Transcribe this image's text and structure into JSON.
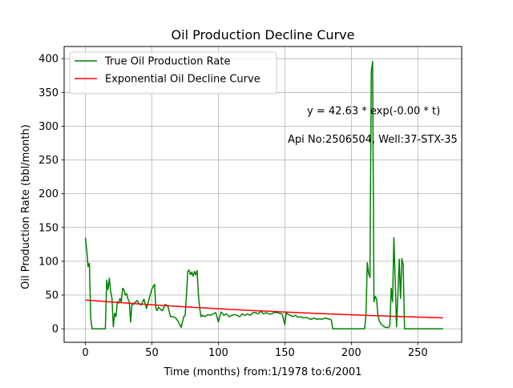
{
  "chart_data": {
    "type": "line",
    "title": "Oil Production Decline Curve",
    "xlabel": "Time (months) from:1/1978 to:6/2001",
    "ylabel": "Oil Production Rate (bbl/month)",
    "xlim": [
      -16,
      283
    ],
    "ylim": [
      -20,
      418
    ],
    "xticks": [
      0,
      50,
      100,
      150,
      200,
      250
    ],
    "yticks": [
      0,
      50,
      100,
      150,
      200,
      250,
      300,
      350,
      400
    ],
    "grid": true,
    "legend_position": "top-left",
    "annotations": [
      {
        "text": "y = 42.63 * exp(-0.00 * t)",
        "x": 192,
        "y": 323
      },
      {
        "text": "Api No:2506504, Well:37-STX-35",
        "x": 192,
        "y": 281
      }
    ],
    "series": [
      {
        "name": "True Oil Production Rate",
        "color": "#008000",
        "x": [
          0,
          1,
          2,
          3,
          4,
          5,
          6,
          7,
          8,
          9,
          10,
          11,
          12,
          13,
          14,
          15,
          16,
          17,
          18,
          19,
          20,
          21,
          22,
          23,
          24,
          25,
          26,
          27,
          28,
          29,
          30,
          31,
          32,
          33,
          34,
          35,
          36,
          37,
          38,
          39,
          40,
          42,
          44,
          46,
          48,
          50,
          52,
          53,
          54,
          55,
          56,
          57,
          58,
          60,
          62,
          64,
          66,
          68,
          70,
          72,
          74,
          75,
          76,
          77,
          78,
          79,
          80,
          81,
          82,
          83,
          84,
          85,
          86,
          87,
          88,
          90,
          92,
          94,
          96,
          98,
          100,
          102,
          104,
          106,
          108,
          110,
          112,
          114,
          116,
          118,
          120,
          122,
          124,
          126,
          128,
          130,
          132,
          134,
          136,
          138,
          140,
          142,
          144,
          148,
          150,
          151,
          152,
          154,
          156,
          158,
          160,
          162,
          164,
          166,
          168,
          170,
          172,
          174,
          176,
          178,
          180,
          182,
          184,
          185,
          186,
          190,
          195,
          200,
          205,
          209,
          210,
          211,
          212,
          213,
          214,
          215,
          216,
          217,
          218,
          219,
          220,
          221,
          222,
          224,
          226,
          228,
          229,
          230,
          231,
          232,
          233,
          234,
          235,
          236,
          237,
          238,
          239,
          240,
          245,
          250,
          255,
          260,
          265,
          269
        ],
        "values": [
          135,
          117,
          92,
          97,
          16,
          0,
          0,
          0,
          0,
          0,
          0,
          0,
          0,
          0,
          0,
          0,
          72,
          58,
          75,
          55,
          45,
          3,
          23,
          18,
          40,
          38,
          45,
          40,
          60,
          58,
          50,
          52,
          44,
          40,
          10,
          37,
          36,
          39,
          40,
          42,
          38,
          35,
          44,
          30,
          45,
          59,
          66,
          30,
          27,
          32,
          30,
          28,
          27,
          36,
          34,
          18,
          18,
          16,
          10,
          2,
          18,
          20,
          50,
          85,
          87,
          80,
          84,
          78,
          85,
          80,
          86,
          50,
          30,
          18,
          20,
          18,
          21,
          20,
          22,
          24,
          10,
          25,
          20,
          22,
          18,
          20,
          21,
          20,
          18,
          22,
          20,
          22,
          20,
          24,
          24,
          22,
          26,
          22,
          24,
          22,
          22,
          24,
          24,
          22,
          6,
          24,
          22,
          20,
          18,
          20,
          17,
          18,
          16,
          17,
          15,
          14,
          16,
          14,
          15,
          14,
          16,
          15,
          14,
          13,
          0,
          0,
          0,
          0,
          0,
          0,
          0,
          20,
          98,
          82,
          76,
          380,
          396,
          40,
          48,
          44,
          20,
          12,
          8,
          4,
          2,
          2,
          6,
          60,
          40,
          135,
          70,
          3,
          50,
          103,
          45,
          104,
          95,
          0,
          0,
          0,
          0,
          0,
          0,
          0
        ]
      },
      {
        "name": "Exponential Oil Decline Curve",
        "color": "#ff0000",
        "model": {
          "a": 42.63,
          "b": 0.0036
        },
        "x": [
          0,
          269
        ]
      }
    ]
  }
}
